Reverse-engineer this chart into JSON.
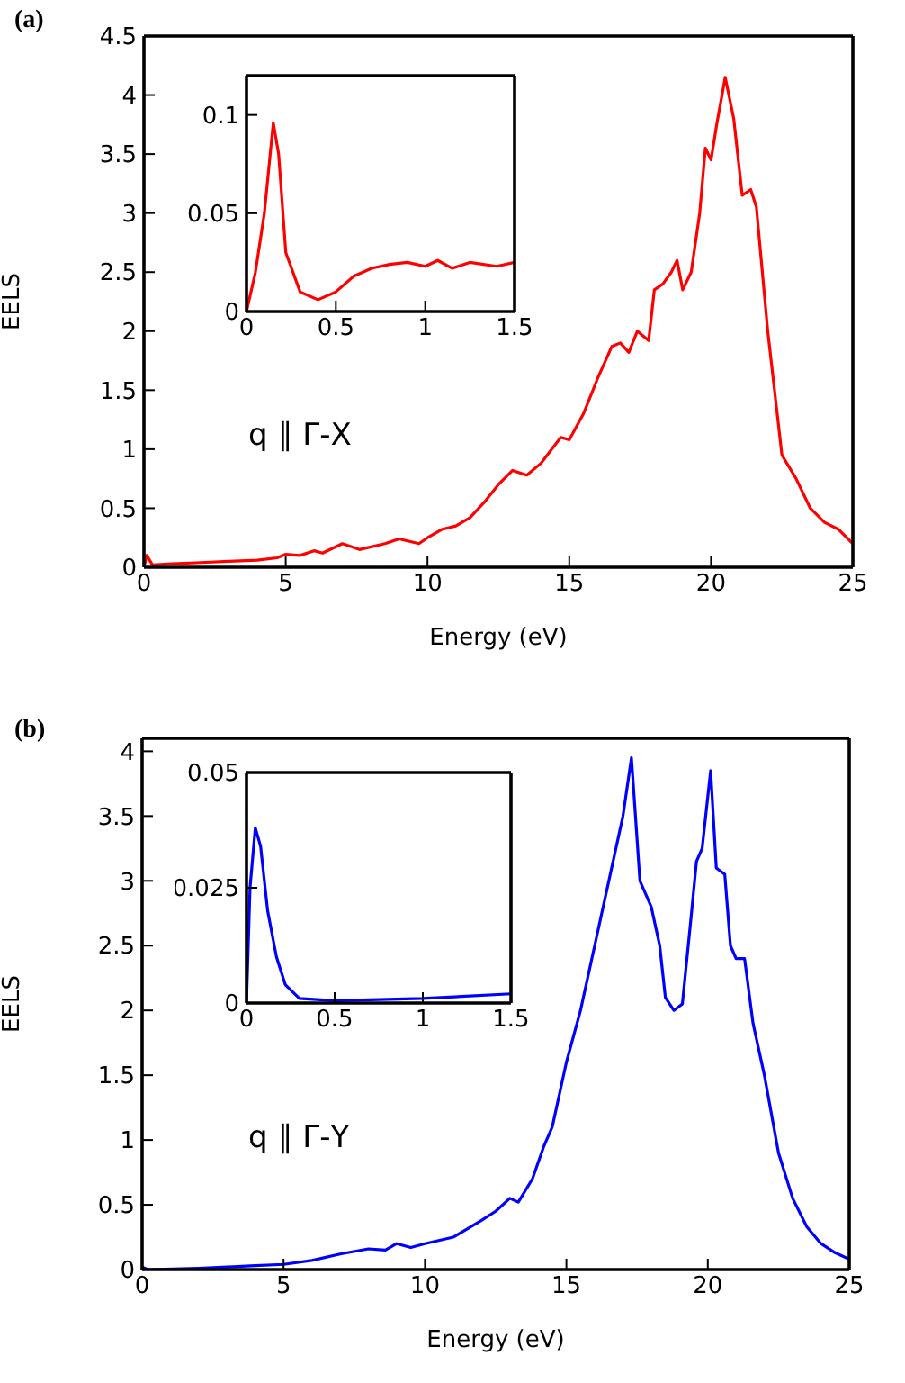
{
  "chart_data": [
    {
      "type": "line",
      "xlabel": "Energy (eV)",
      "ylabel": "EELS",
      "xlim": [
        0,
        25
      ],
      "xticks": [
        0,
        5,
        10,
        15,
        20,
        25
      ],
      "ylim": [
        0,
        4.5
      ],
      "yticks": [
        0,
        0.5,
        1,
        1.5,
        2,
        2.5,
        3,
        3.5,
        4,
        4.5
      ],
      "grid": false,
      "legend": false,
      "marker": "none",
      "annotations": [
        "(a)",
        "q ∥ Γ-X"
      ],
      "series": [
        {
          "color": "#ff0000",
          "x": [
            0,
            0.1,
            0.3,
            1,
            2,
            3,
            4,
            4.7,
            5,
            5.5,
            6,
            6.3,
            7,
            7.6,
            8.5,
            9,
            9.7,
            10,
            10.5,
            11,
            11.5,
            12,
            12.5,
            13,
            13.5,
            14,
            14.7,
            15,
            15.5,
            16,
            16.5,
            16.8,
            17.1,
            17.4,
            17.8,
            18,
            18.3,
            18.6,
            18.8,
            19,
            19.3,
            19.6,
            19.8,
            20,
            20.2,
            20.5,
            20.8,
            21.1,
            21.4,
            21.6,
            22,
            22.5,
            23,
            23.5,
            24,
            24.5,
            25
          ],
          "values": [
            0,
            0.1,
            0.02,
            0.03,
            0.04,
            0.05,
            0.06,
            0.08,
            0.11,
            0.1,
            0.14,
            0.12,
            0.2,
            0.15,
            0.2,
            0.24,
            0.2,
            0.25,
            0.32,
            0.35,
            0.42,
            0.55,
            0.7,
            0.82,
            0.78,
            0.88,
            1.1,
            1.08,
            1.3,
            1.6,
            1.87,
            1.9,
            1.82,
            2,
            1.92,
            2.35,
            2.4,
            2.5,
            2.6,
            2.35,
            2.5,
            3,
            3.55,
            3.45,
            3.75,
            4.15,
            3.8,
            3.15,
            3.2,
            3.05,
            2,
            0.95,
            0.75,
            0.5,
            0.38,
            0.32,
            0.2
          ]
        }
      ]
    },
    {
      "type": "line",
      "xlim": [
        0,
        1.5
      ],
      "xticks": [
        0,
        0.5,
        1,
        1.5
      ],
      "ylim": [
        0,
        0.12
      ],
      "yticks": [
        0,
        0.05,
        0.1
      ],
      "grid": false,
      "legend": false,
      "marker": "none",
      "series": [
        {
          "color": "#ff0000",
          "x": [
            0,
            0.05,
            0.1,
            0.15,
            0.18,
            0.22,
            0.3,
            0.4,
            0.5,
            0.6,
            0.7,
            0.8,
            0.9,
            1,
            1.07,
            1.15,
            1.25,
            1.4,
            1.5
          ],
          "values": [
            0,
            0.02,
            0.05,
            0.096,
            0.08,
            0.03,
            0.01,
            0.006,
            0.01,
            0.018,
            0.022,
            0.024,
            0.025,
            0.023,
            0.026,
            0.022,
            0.025,
            0.023,
            0.025
          ]
        }
      ]
    },
    {
      "type": "line",
      "xlabel": "Energy (eV)",
      "ylabel": "EELS",
      "xlim": [
        0,
        25
      ],
      "xticks": [
        0,
        5,
        10,
        15,
        20,
        25
      ],
      "ylim": [
        0,
        4.1
      ],
      "yticks": [
        0,
        0.5,
        1,
        1.5,
        2,
        2.5,
        3,
        3.5,
        4
      ],
      "grid": false,
      "legend": false,
      "marker": "none",
      "annotations": [
        "(b)",
        "q ∥ Γ-Y"
      ],
      "series": [
        {
          "color": "#0000ff",
          "x": [
            0,
            0.2,
            2,
            3,
            4,
            5,
            6,
            7,
            8,
            8.6,
            9,
            9.5,
            10,
            11,
            12,
            12.5,
            13,
            13.3,
            13.8,
            14.2,
            14.5,
            15,
            15.5,
            16,
            16.5,
            17,
            17.3,
            17.6,
            18,
            18.3,
            18.5,
            18.8,
            19.1,
            19.4,
            19.6,
            19.8,
            20.1,
            20.3,
            20.6,
            20.8,
            21,
            21.3,
            21.6,
            22,
            22.5,
            23,
            23.5,
            24,
            24.5,
            25
          ],
          "values": [
            0.02,
            0,
            0.01,
            0.02,
            0.03,
            0.04,
            0.07,
            0.12,
            0.16,
            0.15,
            0.2,
            0.17,
            0.2,
            0.25,
            0.38,
            0.45,
            0.55,
            0.52,
            0.7,
            0.95,
            1.1,
            1.6,
            2,
            2.5,
            3,
            3.5,
            3.95,
            3,
            2.8,
            2.5,
            2.1,
            2,
            2.05,
            2.7,
            3.15,
            3.25,
            3.85,
            3.1,
            3.05,
            2.5,
            2.4,
            2.4,
            1.9,
            1.5,
            0.9,
            0.55,
            0.33,
            0.2,
            0.13,
            0.08
          ]
        }
      ]
    },
    {
      "type": "line",
      "xlim": [
        0,
        1.5
      ],
      "xticks": [
        0,
        0.5,
        1,
        1.5
      ],
      "ylim": [
        0,
        0.05
      ],
      "yticks": [
        0,
        0.025,
        0.05
      ],
      "grid": false,
      "legend": false,
      "marker": "none",
      "series": [
        {
          "color": "#0000ff",
          "x": [
            0,
            0.02,
            0.05,
            0.08,
            0.12,
            0.17,
            0.22,
            0.3,
            0.5,
            1,
            1.5
          ],
          "values": [
            0,
            0.025,
            0.038,
            0.034,
            0.02,
            0.01,
            0.004,
            0.001,
            0.0005,
            0.001,
            0.002
          ]
        }
      ]
    }
  ]
}
